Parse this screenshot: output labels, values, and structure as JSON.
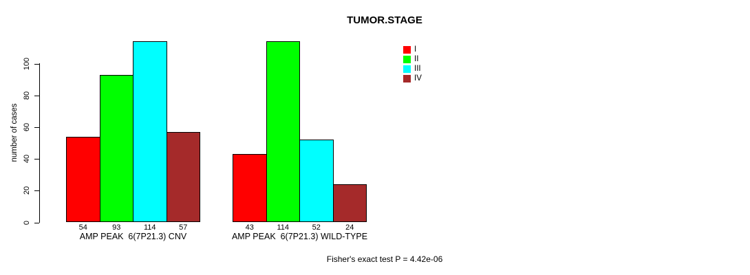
{
  "chart_data": {
    "type": "bar",
    "title": "TUMOR.STAGE",
    "ylabel": "number of cases",
    "xlabel": "",
    "ylim": [
      0,
      117
    ],
    "yticks": [
      0,
      20,
      40,
      60,
      80,
      100
    ],
    "grid": false,
    "legend_position": "top-right",
    "series_names": [
      "I",
      "II",
      "III",
      "IV"
    ],
    "colors": [
      "#FF0000",
      "#00FF00",
      "#00FFFF",
      "#A52A2A"
    ],
    "groups": [
      {
        "label": "AMP PEAK  6(7P21.3) CNV",
        "values": [
          54,
          93,
          114,
          57
        ],
        "value_labels": [
          "54",
          "93",
          "114",
          "57"
        ]
      },
      {
        "label": "AMP PEAK  6(7P21.3) WILD-TYPE",
        "values": [
          43,
          114,
          52,
          24
        ],
        "value_labels": [
          "43",
          "114",
          "52",
          "24"
        ]
      }
    ],
    "annotation": "Fisher's exact test P = 4.42e-06"
  }
}
